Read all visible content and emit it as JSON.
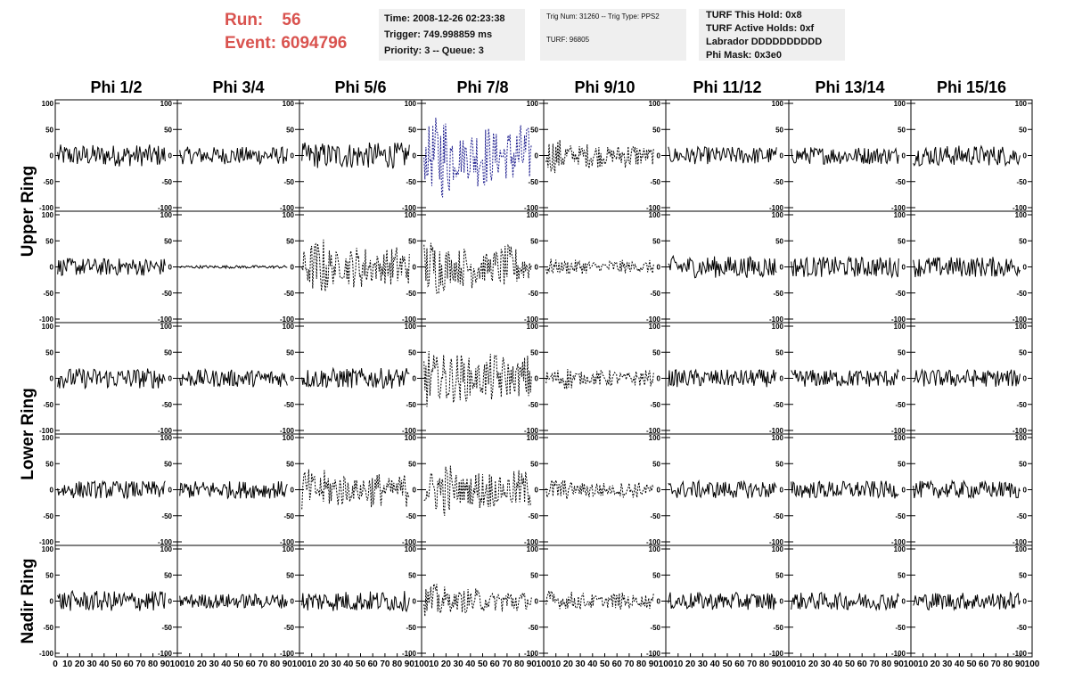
{
  "header": {
    "run_label": "Run:",
    "run_value": "56",
    "event_label": "Event:",
    "event_value": "6094796",
    "box1": {
      "time": "Time: 2008-12-26 02:23:38",
      "trigger": "Trigger: 749.998859 ms",
      "priority": "Priority: 3 -- Queue: 3"
    },
    "box2": {
      "trig": "Trig Num: 31260 -- Trig Type: PPS2",
      "turf": "TURF: 96805"
    },
    "box3": {
      "hold": "TURF This Hold: 0x8",
      "active": "TURF Active Holds: 0xf",
      "labrador": "Labrador DDDDDDDDDD",
      "mask": "Phi Mask: 0x3e0"
    }
  },
  "colors": {
    "run_text": "#d9534f",
    "trace_normal": "#000000",
    "trace_highlight": "#1a1a8c",
    "box_bg": "#efefef"
  },
  "chart_data": {
    "type": "line",
    "columns": [
      "Phi 1/2",
      "Phi 3/4",
      "Phi 5/6",
      "Phi 7/8",
      "Phi 9/10",
      "Phi 11/12",
      "Phi 13/14",
      "Phi 15/16"
    ],
    "rows": [
      "Upper Ring",
      "Upper Ring",
      "Lower Ring",
      "Lower Ring",
      "Nadir Ring"
    ],
    "row_labels": [
      {
        "label": "Upper Ring",
        "rows": [
          0,
          1
        ]
      },
      {
        "label": "Lower Ring",
        "rows": [
          2,
          3
        ]
      },
      {
        "label": "Nadir Ring",
        "rows": [
          4,
          4
        ]
      }
    ],
    "xlim": [
      0,
      100
    ],
    "ylim": [
      -100,
      100
    ],
    "y_ticks": [
      100,
      50,
      0,
      -50,
      -100
    ],
    "y_tick_labels": [
      "100",
      "50",
      "0",
      "-50",
      "-100"
    ],
    "x_tick_labels": [
      "0",
      "10",
      "20",
      "30",
      "40",
      "50",
      "60",
      "70",
      "80",
      "90",
      "100"
    ],
    "amplitudes": [
      [
        15,
        12,
        18,
        45,
        18,
        12,
        12,
        14
      ],
      [
        12,
        2,
        30,
        30,
        10,
        15,
        14,
        14
      ],
      [
        14,
        12,
        14,
        35,
        12,
        12,
        12,
        12
      ],
      [
        12,
        12,
        25,
        28,
        12,
        12,
        12,
        12
      ],
      [
        14,
        10,
        14,
        18,
        12,
        12,
        12,
        12
      ]
    ],
    "styles": [
      [
        "solid",
        "solid",
        "solid",
        "blue-dashed",
        "dashed",
        "solid",
        "solid",
        "solid"
      ],
      [
        "solid",
        "solid",
        "dashed",
        "dashed",
        "dashed",
        "solid",
        "solid",
        "solid"
      ],
      [
        "solid",
        "solid",
        "solid",
        "dashed",
        "dashed",
        "solid",
        "solid",
        "solid"
      ],
      [
        "solid",
        "solid",
        "dashed",
        "dashed",
        "dashed",
        "solid",
        "solid",
        "solid"
      ],
      [
        "solid",
        "solid",
        "solid",
        "dashed",
        "dashed",
        "solid",
        "solid",
        "solid"
      ]
    ],
    "grid": false
  }
}
